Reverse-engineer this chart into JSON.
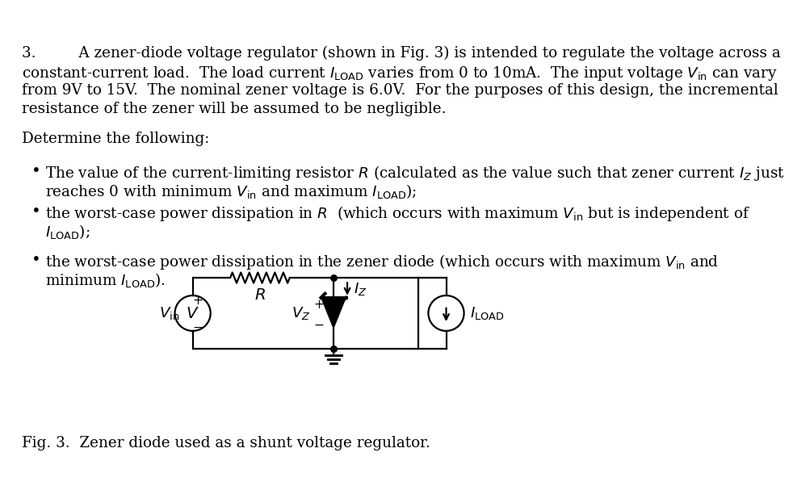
{
  "bg_color": "#ffffff",
  "text_color": "#000000",
  "fig_width": 10.24,
  "fig_height": 7.56,
  "fig_caption": "Fig. 3.  Zener diode used as a shunt voltage regulator.",
  "font_size": 13.2,
  "line_color": "#000000",
  "line_width": 1.6,
  "para_lines": [
    "3.         A zener-diode voltage regulator (shown in Fig. 3) is intended to regulate the voltage across a",
    "constant-current load.  The load current $I_{\\mathrm{LOAD}}$ varies from 0 to 10mA.  The input voltage $V_{\\mathrm{in}}$ can vary",
    "from 9V to 15V.  The nominal zener voltage is 6.0V.  For the purposes of this design, the incremental",
    "resistance of the zener will be assumed to be negligible."
  ],
  "determine": "Determine the following:",
  "b1a": "The value of the current-limiting resistor $R$ (calculated as the value such that zener current $I_Z$ just",
  "b1b": "reaches 0 with minimum $V_{\\mathrm{in}}$ and maximum $I_{\\mathrm{LOAD}}$);",
  "b2a": "the worst-case power dissipation in $R$  (which occurs with maximum $V_{\\mathrm{in}}$ but is independent of",
  "b2b": "$I_{\\mathrm{LOAD}}$);",
  "b3a": "the worst-case power dissipation in the zener diode (which occurs with maximum $V_{\\mathrm{in}}$ and",
  "b3b": "minimum $I_{\\mathrm{LOAD}}$)."
}
